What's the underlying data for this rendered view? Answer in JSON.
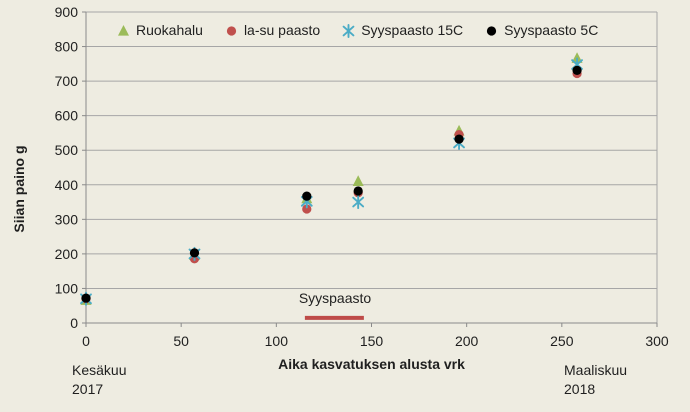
{
  "chart_data": {
    "type": "scatter",
    "title": "",
    "xlabel": "Aika kasvatuksen alusta vrk",
    "ylabel": "Siian paino g",
    "xlim": [
      0,
      300
    ],
    "ylim": [
      0,
      900
    ],
    "x_ticks": [
      0,
      50,
      100,
      150,
      200,
      250,
      300
    ],
    "y_ticks": [
      0,
      100,
      200,
      300,
      400,
      500,
      600,
      700,
      800,
      900
    ],
    "grid": "horizontal-only",
    "legend_position": "top-inside",
    "background_color": "#EEECE1",
    "gridline_color": "#A6A6A6",
    "axis_color": "#8A8A8A",
    "text_color": "#1F1F1F",
    "series": [
      {
        "name": "Ruokahalu",
        "marker": "triangle",
        "color": "#9BBB59",
        "points": [
          [
            0,
            66
          ],
          [
            57,
            196
          ],
          [
            116,
            360
          ],
          [
            143,
            410
          ],
          [
            196,
            556
          ],
          [
            258,
            766
          ]
        ]
      },
      {
        "name": "la-su paasto",
        "marker": "circle",
        "color": "#C0504D",
        "points": [
          [
            0,
            70
          ],
          [
            57,
            186
          ],
          [
            116,
            330
          ],
          [
            143,
            377
          ],
          [
            196,
            545
          ],
          [
            258,
            722
          ]
        ]
      },
      {
        "name": "Syyspaasto 15C",
        "marker": "asterisk",
        "color": "#4BACC6",
        "points": [
          [
            0,
            70
          ],
          [
            57,
            200
          ],
          [
            116,
            352
          ],
          [
            143,
            350
          ],
          [
            196,
            521
          ],
          [
            258,
            748
          ]
        ]
      },
      {
        "name": "Syyspaasto 5C",
        "marker": "circle",
        "color": "#000000",
        "points": [
          [
            0,
            72
          ],
          [
            57,
            203
          ],
          [
            116,
            367
          ],
          [
            143,
            382
          ],
          [
            196,
            532
          ],
          [
            258,
            731
          ]
        ]
      }
    ],
    "annotation": {
      "label": "Syyspaasto",
      "line": {
        "x_start": 115,
        "x_end": 146,
        "y": 15
      },
      "color": "#BE4B48"
    },
    "x_context_labels": [
      {
        "line1": "Kesäkuu",
        "line2": "2017"
      },
      {
        "line1": "Maaliskuu",
        "line2": "2018"
      }
    ]
  }
}
